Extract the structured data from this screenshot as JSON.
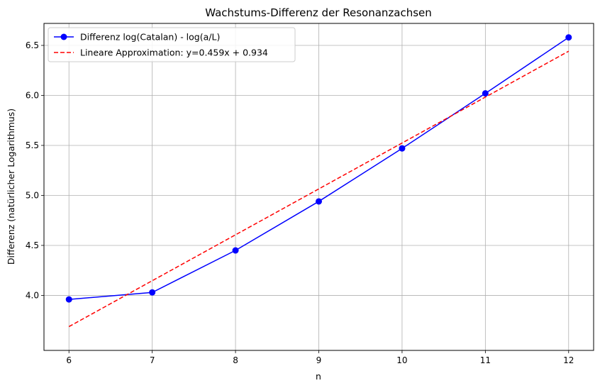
{
  "chart_data": {
    "type": "line",
    "title": "Wachstums-Differenz der Resonanzachsen",
    "xlabel": "n",
    "ylabel": "Differenz (natürlicher Logarithmus)",
    "xlim": [
      5.7,
      12.3
    ],
    "ylim": [
      3.45,
      6.72
    ],
    "x_ticks": [
      6,
      7,
      8,
      9,
      10,
      11,
      12
    ],
    "y_ticks": [
      4.0,
      4.5,
      5.0,
      5.5,
      6.0,
      6.5
    ],
    "x_tick_labels": [
      "6",
      "7",
      "8",
      "9",
      "10",
      "11",
      "12"
    ],
    "y_tick_labels": [
      "4.0",
      "4.5",
      "5.0",
      "5.5",
      "6.0",
      "6.5"
    ],
    "grid": true,
    "legend_position": "top-left",
    "series": [
      {
        "name": "Differenz log(Catalan) - log(a/L)",
        "color": "#0000ff",
        "style": "solid",
        "marker": "circle",
        "x": [
          6,
          7,
          8,
          9,
          10,
          11,
          12
        ],
        "y": [
          3.96,
          4.03,
          4.45,
          4.94,
          5.47,
          6.02,
          6.58
        ]
      },
      {
        "name": "Lineare Approximation: y=0.459x + 0.934",
        "color": "#ff0000",
        "style": "dashed",
        "marker": "none",
        "x": [
          6,
          12
        ],
        "y": [
          3.688,
          6.442
        ]
      }
    ]
  }
}
